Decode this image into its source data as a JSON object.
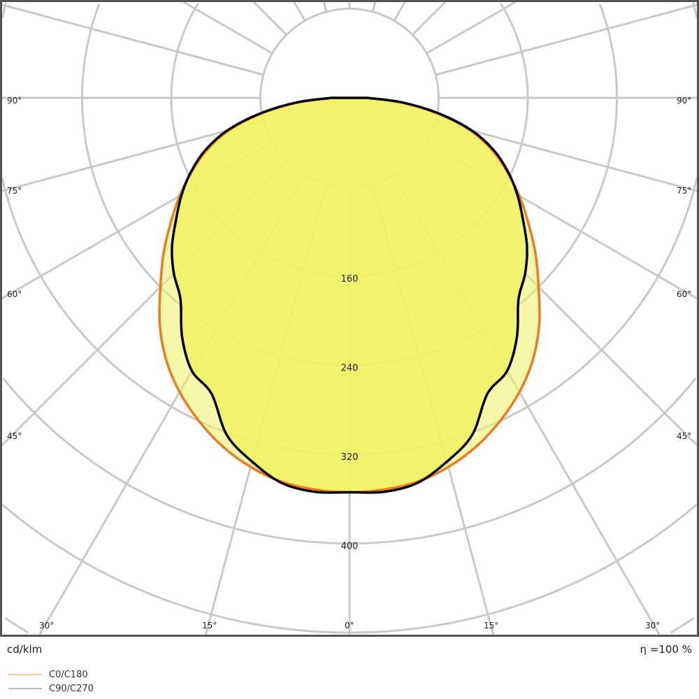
{
  "chart_data": {
    "type": "polar-line",
    "unit_label": "cd/klm",
    "efficiency_label": "η =100 %",
    "radial_ticks": [
      80,
      160,
      240,
      320,
      400,
      480,
      560
    ],
    "radial_tick_labels": [
      "160",
      "240",
      "320",
      "400"
    ],
    "angle_ticks_deg": [
      0,
      15,
      30,
      45,
      60,
      75,
      90
    ],
    "angle_tick_labels": {
      "left": [
        "90°",
        "75°",
        "60°",
        "45°"
      ],
      "bottom": [
        "30°",
        "15°",
        "0°",
        "15°",
        "30°"
      ],
      "right": [
        "90°",
        "75°",
        "60°",
        "45°"
      ]
    },
    "grid": true,
    "angles_deg": [
      0,
      5,
      10,
      15,
      20,
      25,
      30,
      35,
      40,
      45,
      50,
      55,
      60,
      65,
      70,
      75,
      80,
      85,
      90
    ],
    "series": [
      {
        "name": "C0/C180",
        "color": "#f07a1e",
        "legend_color": "#f9c9a5",
        "values": [
          354,
          353,
          350,
          343,
          333,
          320,
          305,
          287,
          265,
          240,
          218,
          196,
          176,
          156,
          136,
          112,
          80,
          46,
          15
        ]
      },
      {
        "name": "C90/C270",
        "color": "#000000",
        "legend_color": "#b8b8b8",
        "values": [
          354,
          355,
          351,
          338,
          322,
          293,
          283,
          262,
          236,
          223,
          208,
          190,
          174,
          157,
          138,
          114,
          82,
          48,
          16
        ]
      }
    ],
    "fill_color": "#eef262",
    "legend_position": "bottom-left"
  }
}
